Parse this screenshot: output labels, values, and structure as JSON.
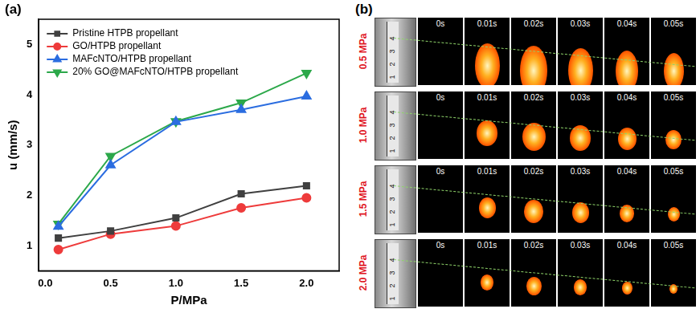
{
  "chart_data": {
    "type": "line",
    "panel": "(a)",
    "x_label": "P/MPa",
    "y_label": "u (mm/s)",
    "x": [
      0.1,
      0.5,
      1.0,
      1.5,
      2.0
    ],
    "series": [
      {
        "name": "Pristine HTPB propellant",
        "color": "#404040",
        "marker": "square",
        "values": [
          1.15,
          1.29,
          1.55,
          2.03,
          2.19
        ]
      },
      {
        "name": "GO/HTPB propellant",
        "color": "#ee3b3b",
        "marker": "circle",
        "values": [
          0.92,
          1.23,
          1.39,
          1.75,
          1.95
        ]
      },
      {
        "name": "MAFcNTO/HTPB propellant",
        "color": "#2b6de0",
        "marker": "triangle_up",
        "values": [
          1.38,
          2.6,
          3.46,
          3.7,
          3.97
        ]
      },
      {
        "name": "20% GO@MAFcNTO/HTPB propellant",
        "color": "#2ca84a",
        "marker": "triangle_down",
        "values": [
          1.43,
          2.78,
          3.47,
          3.84,
          4.43
        ]
      }
    ],
    "xlim": [
      -0.05,
      2.25
    ],
    "xticks": [
      {
        "value": 0.0,
        "label": "0.0"
      },
      0.5,
      {
        "value": 1.0,
        "label": "1.0"
      },
      1.5,
      {
        "value": 2.0,
        "label": "2.0"
      }
    ],
    "ylim": [
      0.5,
      5.5
    ],
    "yticks": [
      1,
      2,
      3,
      4,
      5
    ],
    "grid": false,
    "legend": "upper left"
  },
  "panel_b": {
    "label": "(b)",
    "times": [
      "0s",
      "0.01s",
      "0.02s",
      "0.03s",
      "0.04s",
      "0.05s"
    ],
    "pressures": [
      "0.5 MPa",
      "1.0 MPa",
      "1.5 MPa",
      "2.0 MPa"
    ],
    "ruler_ticks": [
      "1",
      "2",
      "3",
      "4"
    ]
  }
}
